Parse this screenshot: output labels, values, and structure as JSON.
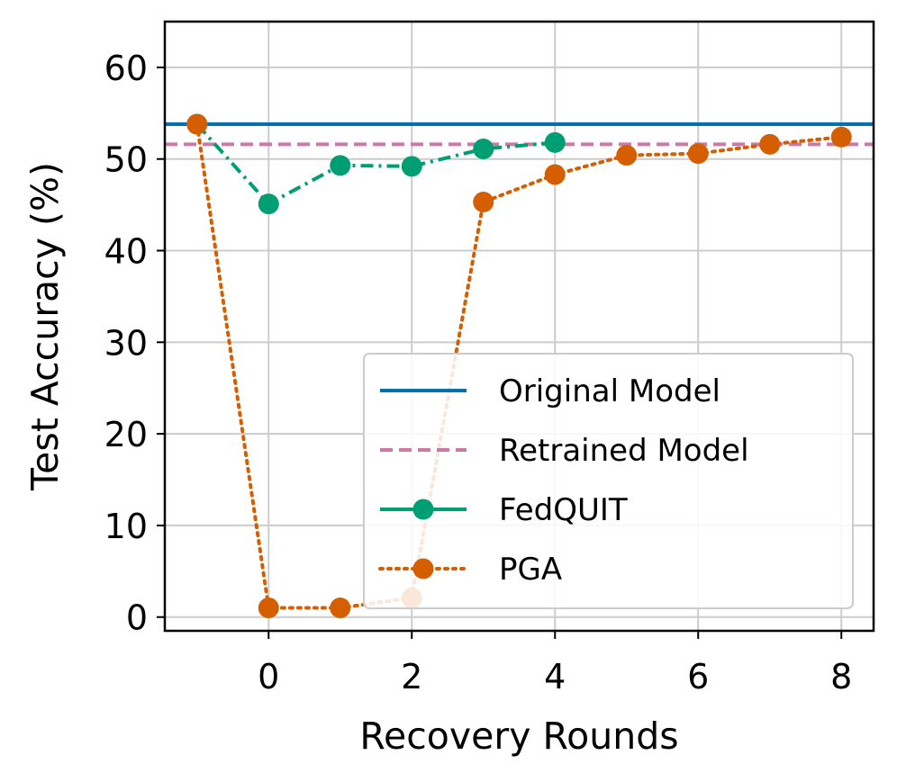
{
  "chart_data": {
    "type": "line",
    "title": "",
    "xlabel": "Recovery Rounds",
    "ylabel": "Test Accuracy (%)",
    "xlim": [
      -1.45,
      8.45
    ],
    "ylim": [
      -1.5,
      65
    ],
    "xticks": [
      0,
      2,
      4,
      6,
      8
    ],
    "yticks": [
      0,
      10,
      20,
      30,
      40,
      50,
      60
    ],
    "grid": true,
    "legend_position": "lower-right",
    "hlines": [
      {
        "name": "Original Model",
        "y": 53.8,
        "color": "#0072B2",
        "style": "solid"
      },
      {
        "name": "Retrained Model",
        "y": 51.6,
        "color": "#CC79A7",
        "style": "dashed"
      }
    ],
    "series": [
      {
        "name": "FedQUIT",
        "color": "#009E73",
        "style": "dashdot",
        "marker": "circle",
        "x": [
          -1,
          0,
          1,
          2,
          3,
          4
        ],
        "values": [
          53.8,
          45.1,
          49.3,
          49.2,
          51.1,
          51.8
        ]
      },
      {
        "name": "PGA",
        "color": "#D55E00",
        "style": "dotted",
        "marker": "circle",
        "x": [
          -1,
          0,
          1,
          2,
          3,
          4,
          5,
          6,
          7,
          8
        ],
        "values": [
          53.8,
          1.0,
          1.0,
          2.1,
          45.3,
          48.3,
          50.4,
          50.6,
          51.6,
          52.4
        ]
      }
    ],
    "legend": [
      "Original Model",
      "Retrained Model",
      "FedQUIT",
      "PGA"
    ]
  }
}
